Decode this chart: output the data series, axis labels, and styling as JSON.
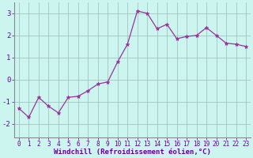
{
  "x": [
    0,
    1,
    2,
    3,
    4,
    5,
    6,
    7,
    8,
    9,
    10,
    11,
    12,
    13,
    14,
    15,
    16,
    17,
    18,
    19,
    20,
    21,
    22,
    23
  ],
  "y": [
    -1.3,
    -1.7,
    -0.8,
    -1.2,
    -1.5,
    -0.8,
    -0.75,
    -0.5,
    -0.2,
    -0.1,
    0.8,
    1.6,
    3.1,
    3.0,
    2.3,
    2.5,
    1.85,
    1.95,
    2.0,
    2.35,
    2.0,
    1.65,
    1.6,
    1.5
  ],
  "line_color": "#993399",
  "marker": "*",
  "marker_size": 3.5,
  "bg_color": "#ccf5ef",
  "grid_color": "#99bbbb",
  "xlabel": "Windchill (Refroidissement éolien,°C)",
  "xlabel_color": "#660099",
  "xlabel_fontsize": 6.5,
  "tick_color": "#660099",
  "tick_fontsize": 5.5,
  "ytick_fontsize": 6.5,
  "ylim": [
    -2.6,
    3.5
  ],
  "xlim": [
    -0.5,
    23.5
  ],
  "yticks": [
    -2,
    -1,
    0,
    1,
    2,
    3
  ],
  "spine_color": "#888888",
  "linewidth": 0.9
}
